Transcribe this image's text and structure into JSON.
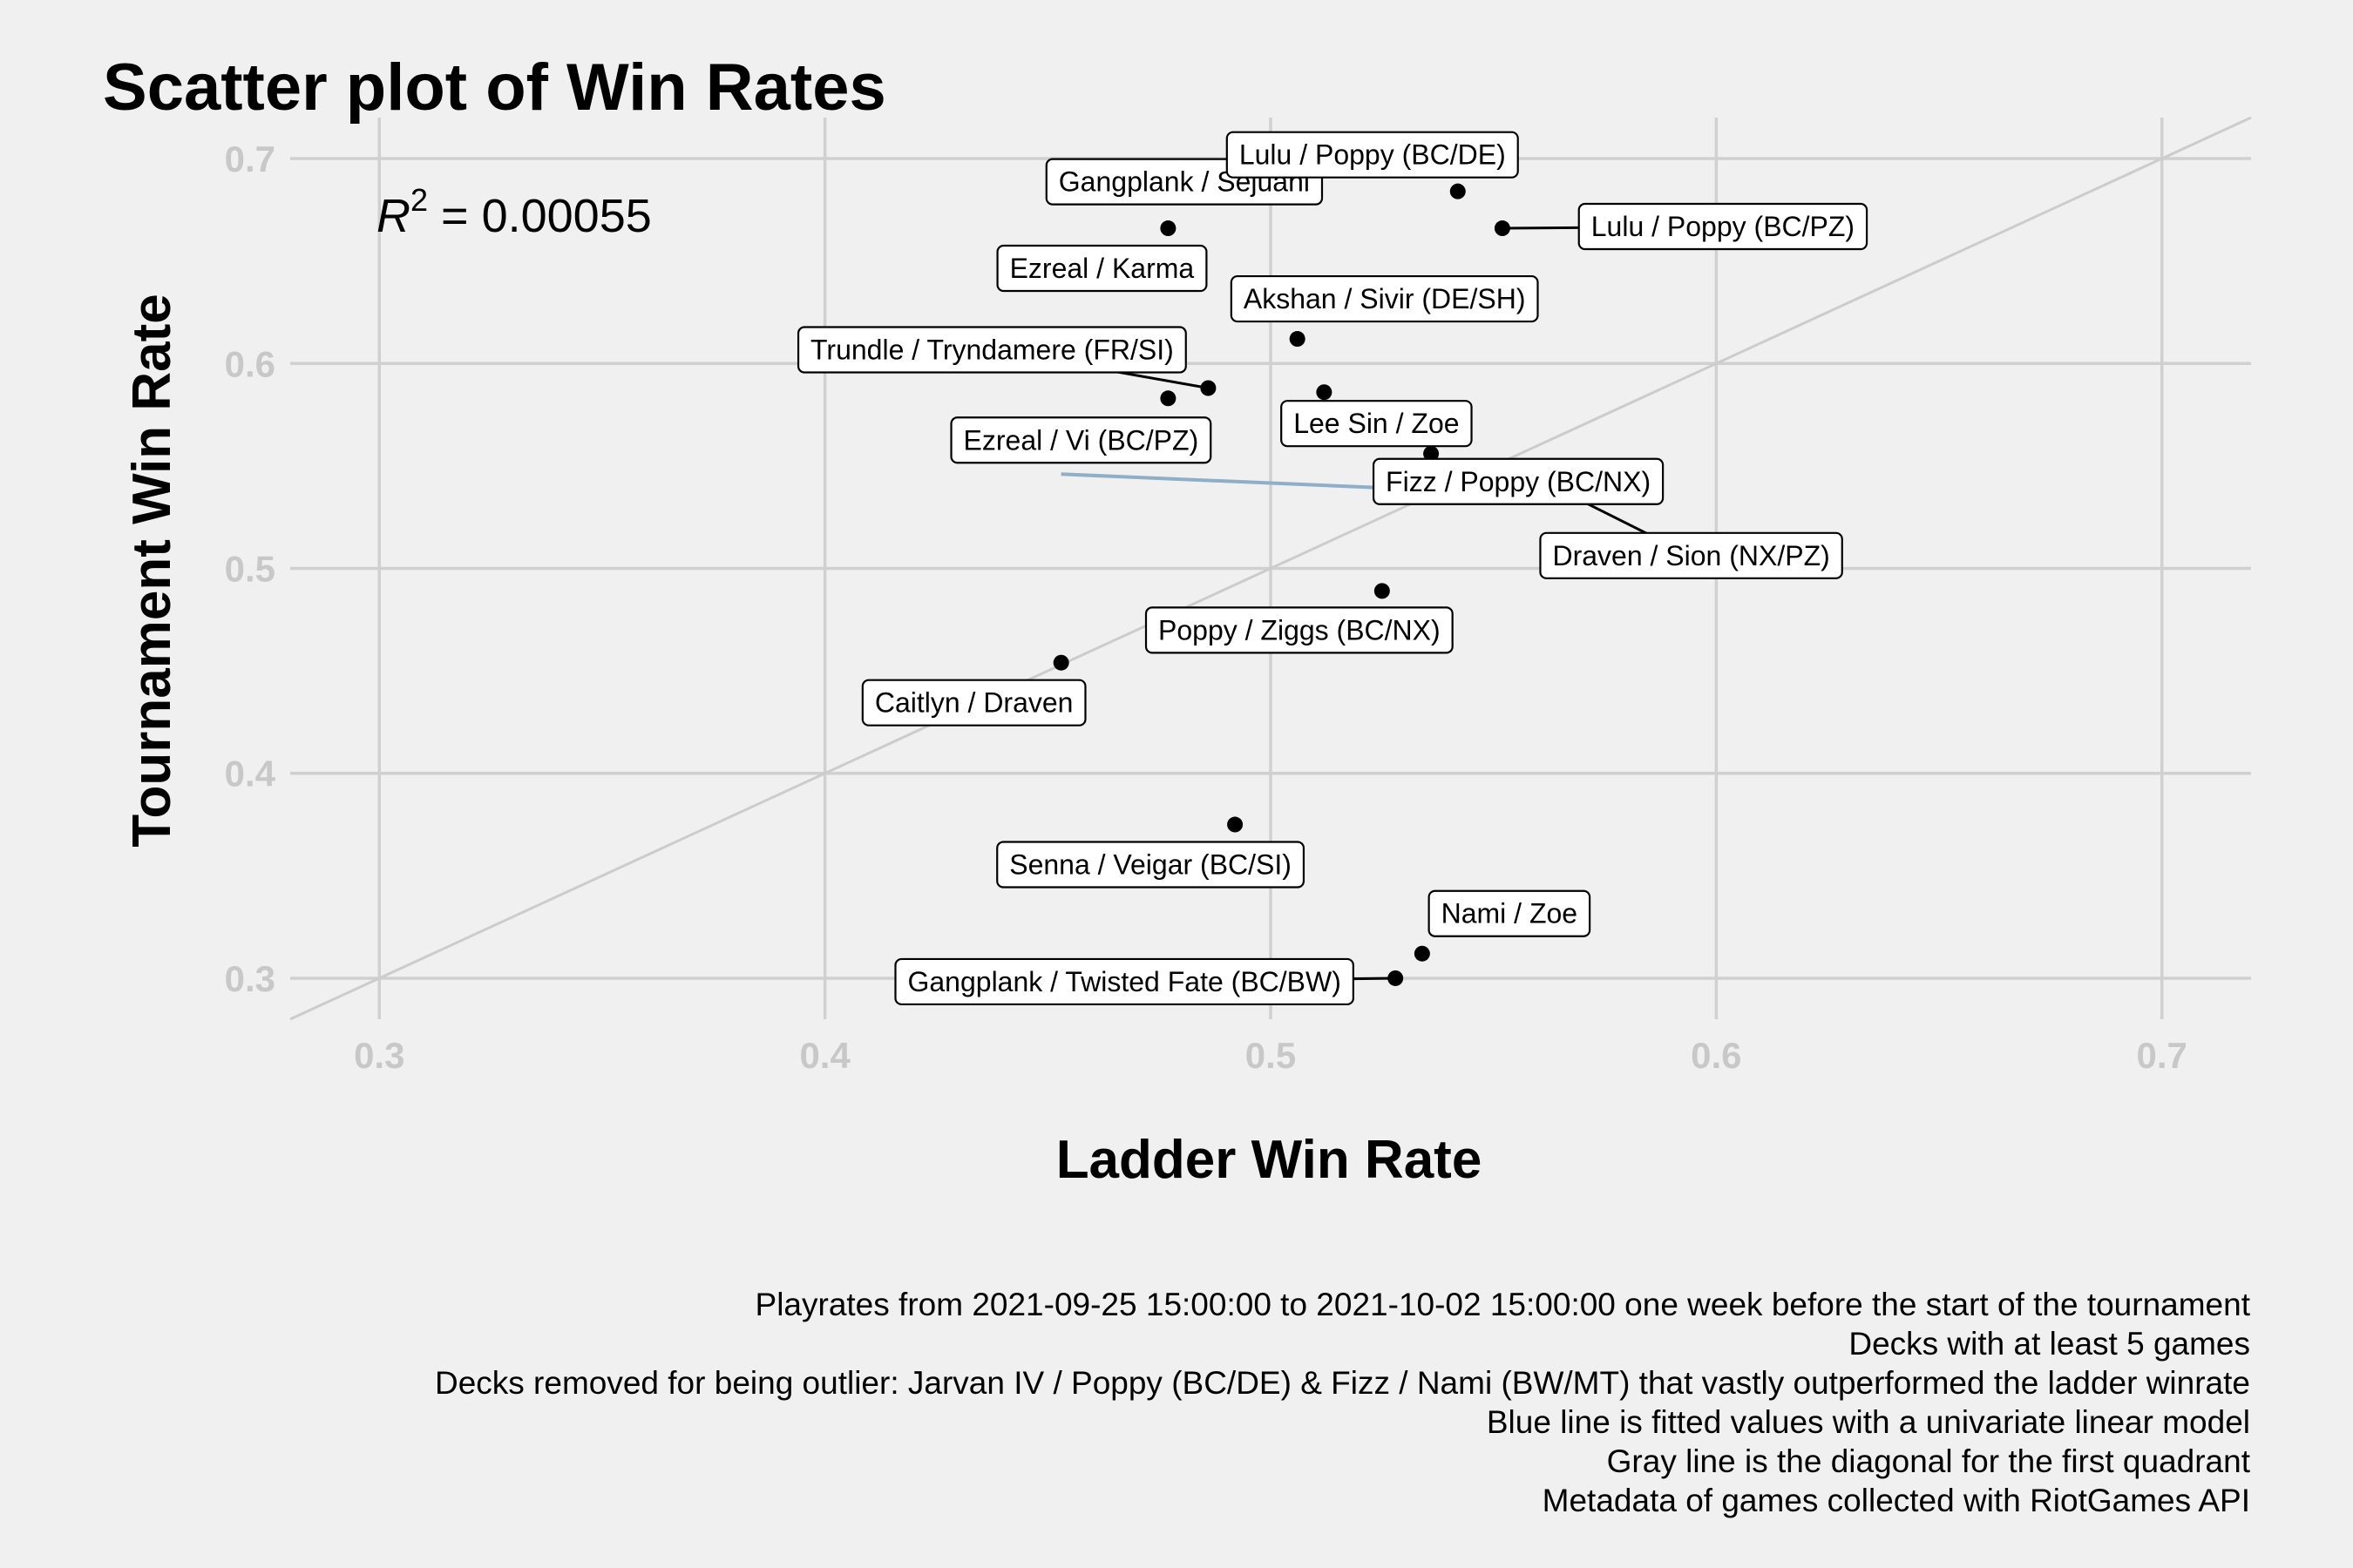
{
  "chart_data": {
    "type": "scatter",
    "title": "Scatter plot of Win Rates",
    "xlabel": "Ladder Win Rate",
    "ylabel": "Tournament Win Rate",
    "xlim": [
      0.28,
      0.72
    ],
    "ylim": [
      0.28,
      0.72
    ],
    "xticks": [
      "0.3",
      "0.4",
      "0.5",
      "0.6",
      "0.7"
    ],
    "yticks": [
      "0.3",
      "0.4",
      "0.5",
      "0.6",
      "0.7"
    ],
    "grid": true,
    "legend": "none",
    "annotation": {
      "label": "R",
      "superscript": "2",
      "value": " = 0.00055"
    },
    "points": [
      {
        "x": 0.499,
        "y": 0.687,
        "label": "Gangplank / Sejuani"
      },
      {
        "x": 0.542,
        "y": 0.684,
        "label": "Lulu / Poppy (BC/DE)"
      },
      {
        "x": 0.552,
        "y": 0.666,
        "label": "Lulu / Poppy (BC/PZ)"
      },
      {
        "x": 0.477,
        "y": 0.666,
        "label": "Ezreal / Karma"
      },
      {
        "x": 0.506,
        "y": 0.612,
        "label": "Akshan / Sivir (DE/SH)"
      },
      {
        "x": 0.486,
        "y": 0.588,
        "label": "Trundle / Tryndamere (FR/SI)"
      },
      {
        "x": 0.512,
        "y": 0.586,
        "label": "Lee Sin / Zoe"
      },
      {
        "x": 0.477,
        "y": 0.583,
        "label": "Ezreal / Vi (BC/PZ)"
      },
      {
        "x": 0.536,
        "y": 0.556,
        "label": "Fizz / Poppy (BC/NX)"
      },
      {
        "x": 0.567,
        "y": 0.536,
        "label": "Draven / Sion (NX/PZ)"
      },
      {
        "x": 0.525,
        "y": 0.489,
        "label": "Poppy / Ziggs (BC/NX)"
      },
      {
        "x": 0.453,
        "y": 0.454,
        "label": "Caitlyn / Draven"
      },
      {
        "x": 0.492,
        "y": 0.375,
        "label": "Senna / Veigar (BC/SI)"
      },
      {
        "x": 0.534,
        "y": 0.312,
        "label": "Nami / Zoe"
      },
      {
        "x": 0.528,
        "y": 0.3,
        "label": "Gangplank / Twisted Fate (BC/BW)"
      }
    ],
    "fit_line": {
      "x": [
        0.453,
        0.572
      ],
      "y": [
        0.546,
        0.535
      ],
      "color": "#8eaec9"
    },
    "diagonal_line": {
      "color": "#cccccc"
    },
    "caption": [
      "Playrates from 2021-09-25 15:00:00 to 2021-10-02 15:00:00 one week before the start of the tournament",
      "Decks with at least 5 games",
      "Decks removed for being outlier: Jarvan IV / Poppy (BC/DE) & Fizz / Nami (BW/MT) that vastly outperformed the ladder winrate",
      "Blue line is fitted values with a univariate linear model",
      "Gray line is the diagonal for the first quadrant",
      "Metadata of games collected with RiotGames API"
    ]
  }
}
